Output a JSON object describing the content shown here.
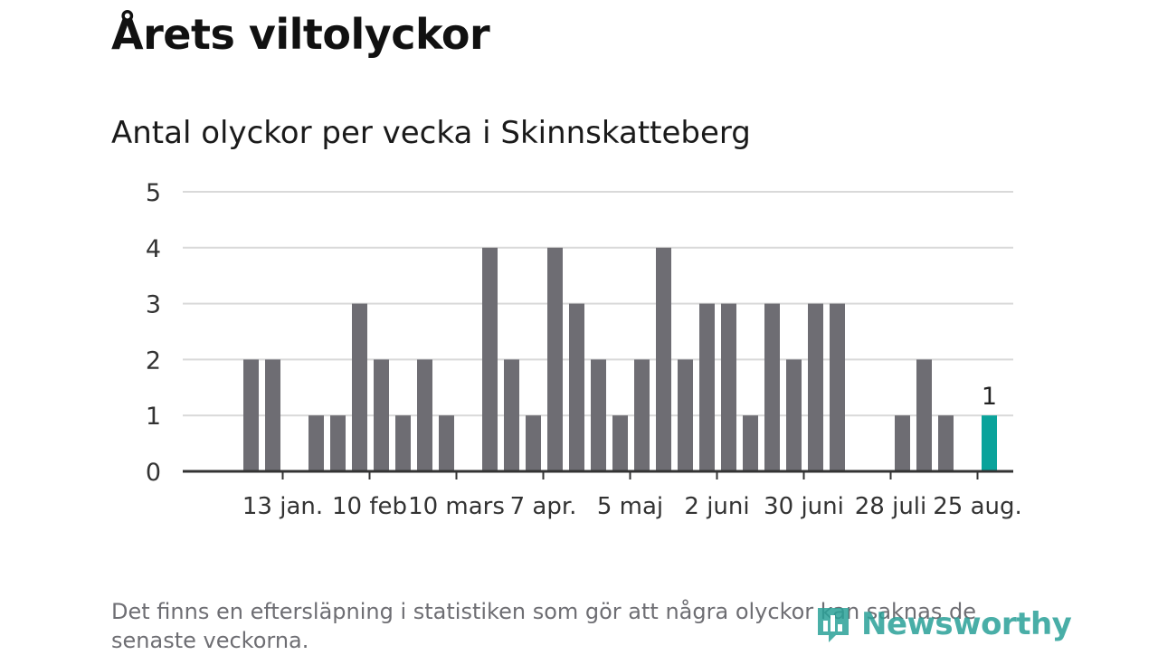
{
  "title": "Årets viltolyckor",
  "subtitle": "Antal olyckor per vecka i Skinnskatteberg",
  "footnote": "Det finns en eftersläpning i statistiken som gör att några olyckor kan saknas de senaste veckorna.",
  "logo": {
    "text": "Newsworthy",
    "icon": "bar-chart-icon",
    "color": "#2aa198"
  },
  "colors": {
    "bar": "#6e6d73",
    "highlight": "#0aa39b",
    "grid": "#d9d9d9",
    "axis": "#333333"
  },
  "chart_data": {
    "type": "bar",
    "title": "Antal olyckor per vecka i Skinnskatteberg",
    "xlabel": "",
    "ylabel": "",
    "ylim": [
      0,
      5
    ],
    "yticks": [
      "0",
      "1",
      "2",
      "3",
      "4",
      "5"
    ],
    "grid": true,
    "xtick_labels": [
      "13 jan.",
      "10 feb",
      "10 mars",
      "7 apr.",
      "5 maj",
      "2 juni",
      "30 juni",
      "28 juli",
      "25 aug."
    ],
    "xtick_week_index": [
      3,
      7,
      11,
      15,
      19,
      23,
      27,
      31,
      35
    ],
    "weeks": [
      1,
      2,
      3,
      4,
      5,
      6,
      7,
      8,
      9,
      10,
      11,
      12,
      13,
      14,
      15,
      16,
      17,
      18,
      19,
      20,
      21,
      22,
      23,
      24,
      25,
      26,
      27,
      28,
      29,
      30,
      31,
      32,
      33,
      34,
      35,
      36
    ],
    "values": [
      0,
      2,
      2,
      0,
      1,
      1,
      3,
      2,
      1,
      2,
      1,
      0,
      4,
      2,
      1,
      4,
      3,
      2,
      1,
      2,
      4,
      2,
      3,
      3,
      1,
      3,
      2,
      3,
      3,
      0,
      0,
      1,
      2,
      1,
      0,
      1
    ],
    "highlight_index": 35,
    "highlight_label": "1"
  }
}
